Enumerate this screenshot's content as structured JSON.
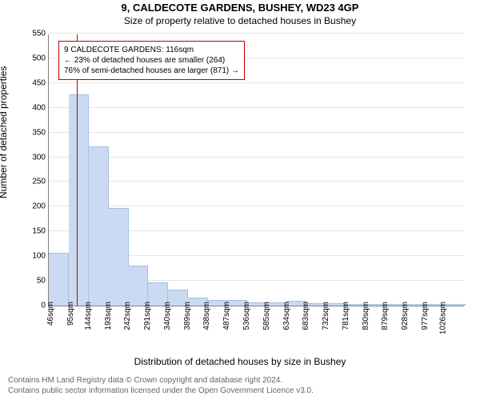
{
  "title1": "9, CALDECOTE GARDENS, BUSHEY, WD23 4GP",
  "title2": "Size of property relative to detached houses in Bushey",
  "ylabel": "Number of detached properties",
  "xlabel": "Distribution of detached houses by size in Bushey",
  "chart": {
    "type": "histogram",
    "ylim": [
      0,
      550
    ],
    "ytick_step": 50,
    "background_color": "#ffffff",
    "grid_color": "#e6e6e6",
    "axis_color": "#808080",
    "bar_fill": "#c9daf2",
    "bar_stroke": "#a8bfe0",
    "bar_width": 0.98,
    "label_fontsize": 12,
    "tick_fontsize": 10,
    "x_start": 46,
    "x_step": 49,
    "x_count": 21,
    "x_unit": "sqm",
    "values": [
      105,
      425,
      320,
      195,
      80,
      45,
      30,
      15,
      10,
      10,
      5,
      5,
      8,
      3,
      3,
      2,
      2,
      1,
      1,
      1,
      1
    ],
    "marker_line": {
      "value_sqm": 116,
      "color": "#c00000",
      "width": 1
    }
  },
  "annotation": {
    "border_color": "#c00000",
    "lines": [
      "9 CALDECOTE GARDENS: 116sqm",
      "← 23% of detached houses are smaller (264)",
      "76% of semi-detached houses are larger (871) →"
    ]
  },
  "footer": {
    "line1": "Contains HM Land Registry data © Crown copyright and database right 2024.",
    "line2": "Contains public sector information licensed under the Open Government Licence v3.0."
  }
}
